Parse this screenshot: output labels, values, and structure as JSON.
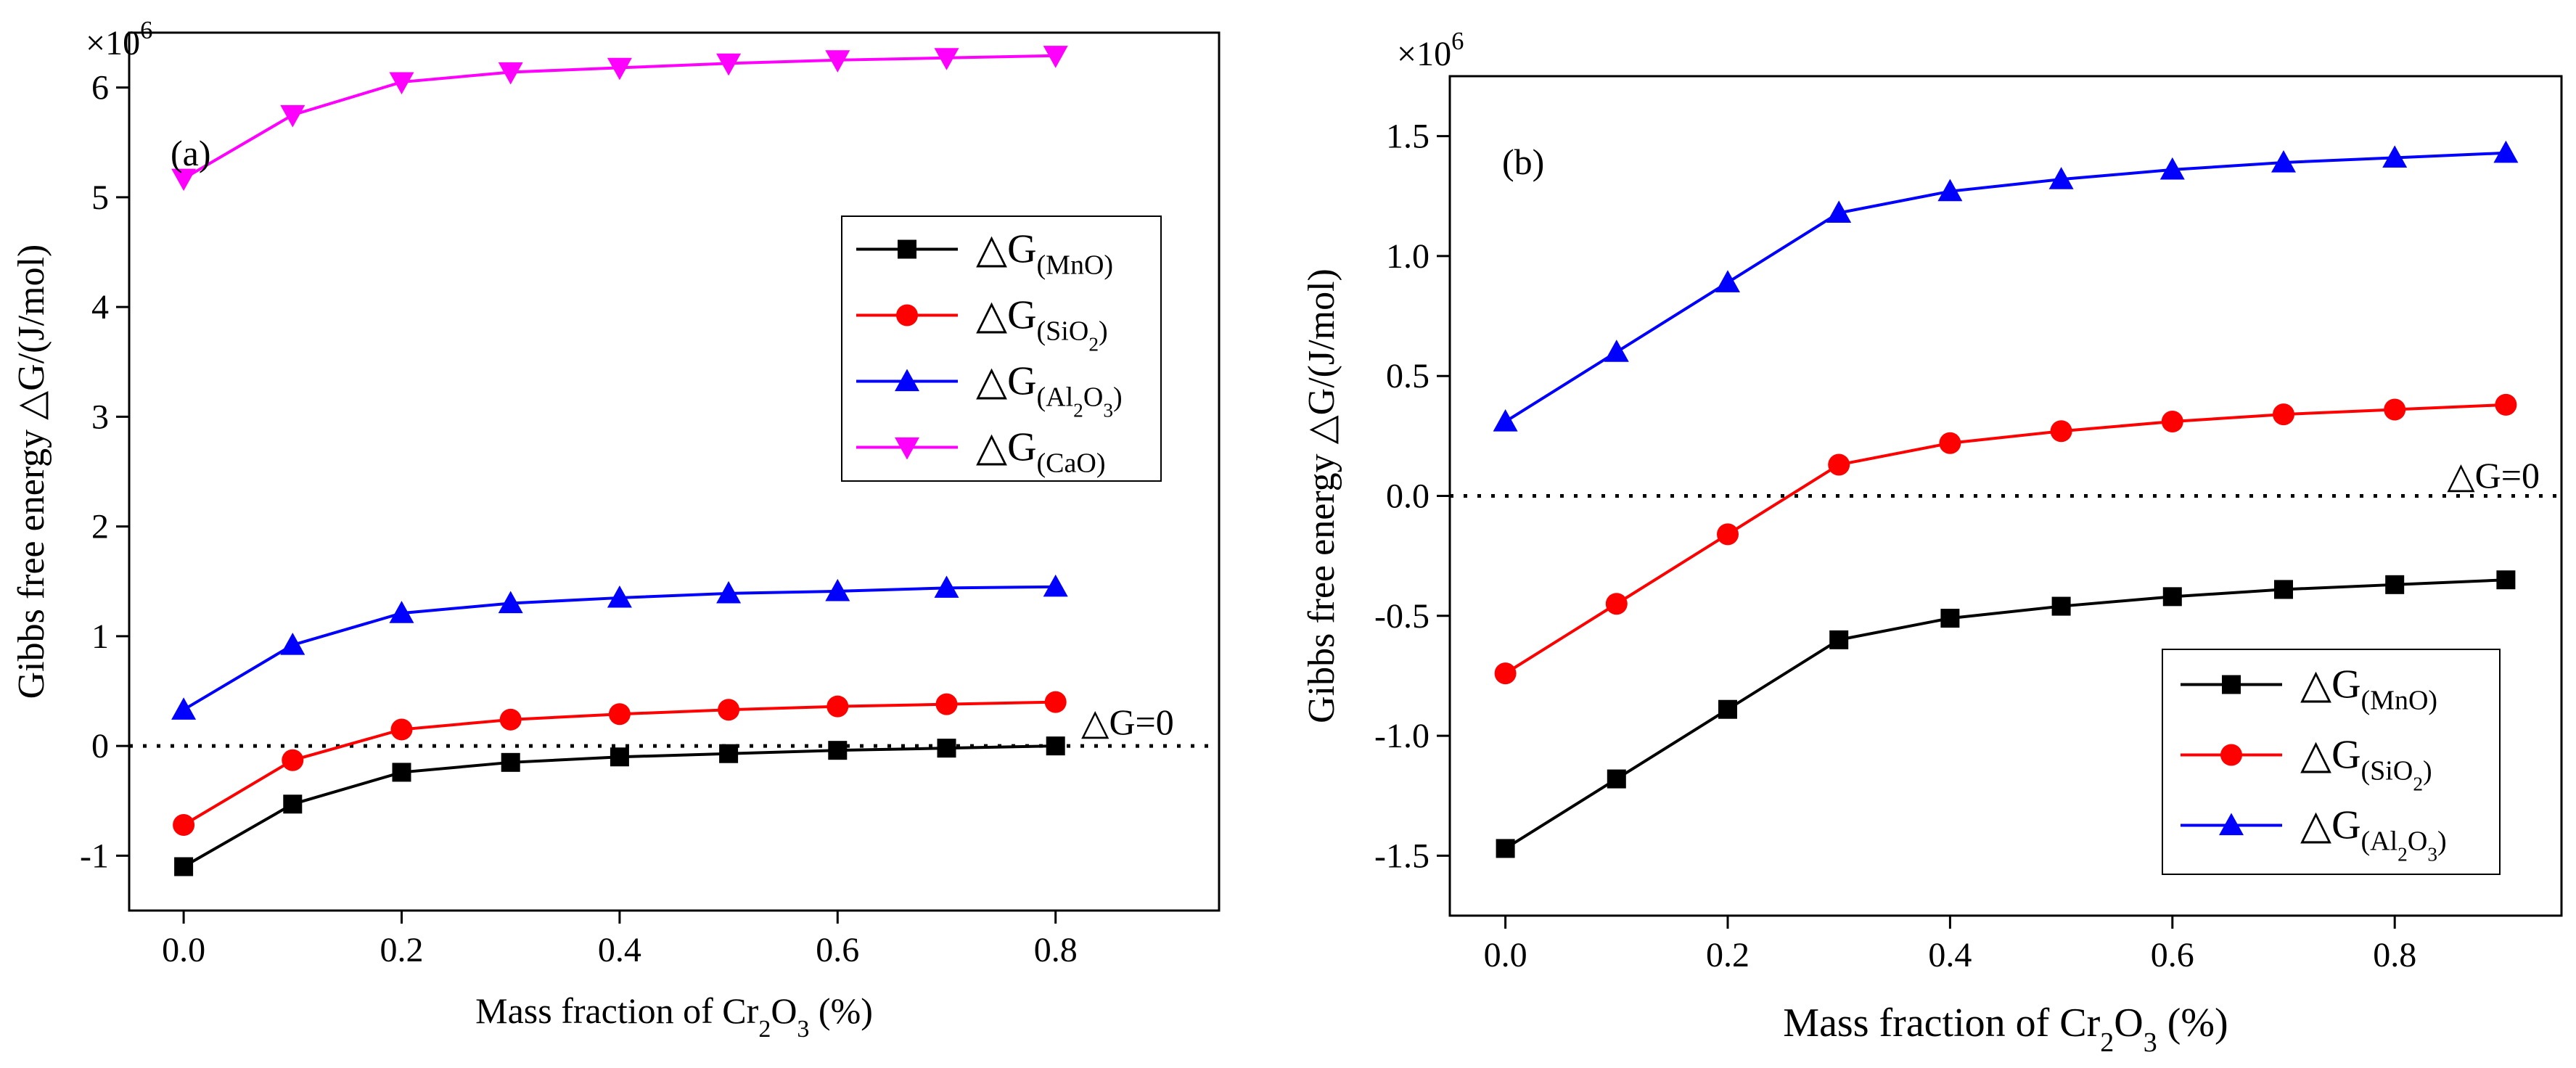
{
  "chart_data": [
    {
      "type": "line",
      "panel_label": "(a)",
      "multiplier_label": "×10",
      "multiplier_exp": "6",
      "ylabel": "Gibbs free energy △G/(J/mol)",
      "xlabel_parts": [
        "Mass fraction of Cr",
        "2",
        "O",
        "3",
        " (%)"
      ],
      "x": [
        0.0,
        0.1,
        0.2,
        0.3,
        0.4,
        0.5,
        0.6,
        0.7,
        0.8
      ],
      "xlim": [
        -0.05,
        0.95
      ],
      "ylim": [
        -1.5,
        6.5
      ],
      "xticks": [
        0.0,
        0.2,
        0.4,
        0.6,
        0.8
      ],
      "xtick_labels": [
        "0.0",
        "0.2",
        "0.4",
        "0.6",
        "0.8"
      ],
      "yticks": [
        -1,
        0,
        1,
        2,
        3,
        4,
        5,
        6
      ],
      "ytick_labels": [
        "-1",
        "0",
        "1",
        "2",
        "3",
        "4",
        "5",
        "6"
      ],
      "zero_line_label": "△G=0",
      "legend_position": "upper-right",
      "series": [
        {
          "name": "△G(MnO)",
          "main": "△G",
          "sub_parts": [
            "(MnO)"
          ],
          "color": "#000000",
          "marker": "square",
          "values": [
            -1.1,
            -0.53,
            -0.24,
            -0.15,
            -0.1,
            -0.07,
            -0.04,
            -0.02,
            0.0
          ]
        },
        {
          "name": "△G(SiO2)",
          "main": "△G",
          "sub_parts": [
            "(SiO",
            "2",
            ")"
          ],
          "color": "#ff0000",
          "marker": "circle",
          "values": [
            -0.72,
            -0.13,
            0.15,
            0.24,
            0.29,
            0.33,
            0.36,
            0.38,
            0.4
          ]
        },
        {
          "name": "△G(Al2O3)",
          "main": "△G",
          "sub_parts": [
            "(Al",
            "2",
            "O",
            "3",
            ")"
          ],
          "color": "#0000ff",
          "marker": "triangle-up",
          "values": [
            0.33,
            0.92,
            1.21,
            1.3,
            1.35,
            1.39,
            1.41,
            1.44,
            1.45
          ]
        },
        {
          "name": "△G(CaO)",
          "main": "△G",
          "sub_parts": [
            "(CaO)"
          ],
          "color": "#ff00ff",
          "marker": "triangle-down",
          "values": [
            5.17,
            5.75,
            6.05,
            6.14,
            6.18,
            6.22,
            6.25,
            6.27,
            6.29
          ]
        }
      ]
    },
    {
      "type": "line",
      "panel_label": "(b)",
      "multiplier_label": "×10",
      "multiplier_exp": "6",
      "ylabel": "Gibbs free energy △G/(J/mol)",
      "xlabel_parts": [
        "Mass fraction of Cr",
        "2",
        "O",
        "3",
        " (%)"
      ],
      "x": [
        0.0,
        0.1,
        0.2,
        0.3,
        0.4,
        0.5,
        0.6,
        0.7,
        0.8,
        0.9
      ],
      "xlim": [
        -0.05,
        0.95
      ],
      "ylim": [
        -1.75,
        1.75
      ],
      "xticks": [
        0.0,
        0.2,
        0.4,
        0.6,
        0.8
      ],
      "xtick_labels": [
        "0.0",
        "0.2",
        "0.4",
        "0.6",
        "0.8"
      ],
      "yticks": [
        -1.5,
        -1.0,
        -0.5,
        0.0,
        0.5,
        1.0,
        1.5
      ],
      "ytick_labels": [
        "-1.5",
        "-1.0",
        "-0.5",
        "0.0",
        "0.5",
        "1.0",
        "1.5"
      ],
      "zero_line_label": "△G=0",
      "legend_position": "lower-right",
      "series": [
        {
          "name": "△G(MnO)",
          "main": "△G",
          "sub_parts": [
            "(MnO)"
          ],
          "color": "#000000",
          "marker": "square",
          "values": [
            -1.47,
            -1.18,
            -0.89,
            -0.6,
            -0.51,
            -0.46,
            -0.42,
            -0.39,
            -0.37,
            -0.35
          ]
        },
        {
          "name": "△G(SiO2)",
          "main": "△G",
          "sub_parts": [
            "(SiO",
            "2",
            ")"
          ],
          "color": "#ff0000",
          "marker": "circle",
          "values": [
            -0.74,
            -0.45,
            -0.16,
            0.13,
            0.22,
            0.27,
            0.31,
            0.34,
            0.36,
            0.38
          ]
        },
        {
          "name": "△G(Al2O3)",
          "main": "△G",
          "sub_parts": [
            "(Al",
            "2",
            "O",
            "3",
            ")"
          ],
          "color": "#0000ff",
          "marker": "triangle-up",
          "values": [
            0.31,
            0.6,
            0.89,
            1.18,
            1.27,
            1.32,
            1.36,
            1.39,
            1.41,
            1.43
          ]
        }
      ]
    }
  ]
}
